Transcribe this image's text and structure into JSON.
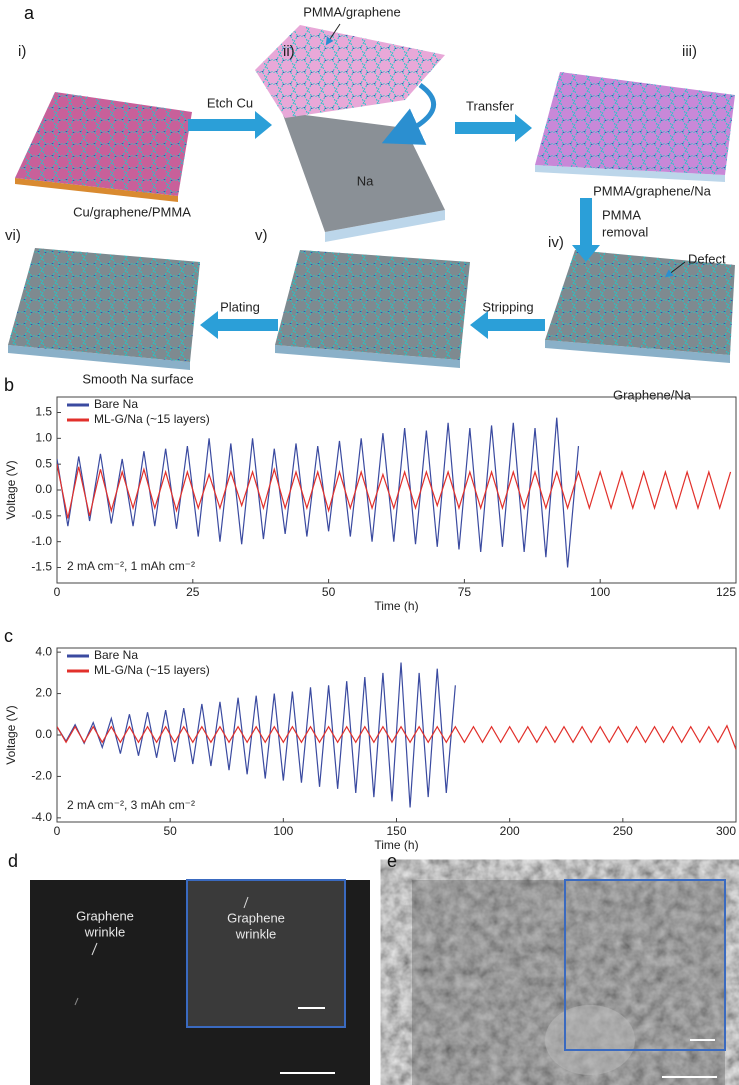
{
  "figure": {
    "panels": [
      "a",
      "b",
      "c",
      "d",
      "e"
    ],
    "steps": [
      "i)",
      "ii)",
      "iii)",
      "iv)",
      "v)",
      "vi)"
    ],
    "labels": {
      "peel": "PMMA/graphene",
      "na": "Na",
      "start": "Cu/graphene/PMMA",
      "etch": "Etch Cu",
      "transfer": "Transfer",
      "stack": "PMMA/graphene/Na",
      "removal": [
        "PMMA",
        "removal"
      ],
      "defect": "Defect",
      "result": "Graphene/Na",
      "stripping": "Stripping",
      "plating": "Plating",
      "smooth": "Smooth Na surface"
    }
  },
  "images": {
    "d": {
      "annotation": [
        "Graphene",
        "wrinkle"
      ],
      "inset_annotation": [
        "Graphene",
        "wrinkle"
      ]
    }
  },
  "chart_data": [
    {
      "type": "line",
      "ylabel": "Voltage (V)",
      "xlabel": "Time (h)",
      "annotation": "2 mA cm⁻², 1 mAh cm⁻²",
      "xlim": [
        0,
        125
      ],
      "xticks": [
        0,
        25,
        50,
        75,
        100,
        125
      ],
      "ylim": [
        -1.8,
        1.8
      ],
      "yticks": [
        {
          "value": -1.5,
          "label": "-1.5"
        },
        {
          "value": -1,
          "label": "-1.0"
        },
        -0.5,
        {
          "value": 0,
          "label": "0.0"
        },
        0.5,
        {
          "value": 1,
          "label": "1.0"
        },
        1.5
      ],
      "series": [
        {
          "name": "Bare Na",
          "color": "#3a4aa0",
          "x": [
            0,
            2,
            4,
            6,
            8,
            10,
            12,
            14,
            16,
            18,
            20,
            22,
            24,
            26,
            28,
            30,
            32,
            34,
            36,
            38,
            40,
            42,
            44,
            46,
            48,
            50,
            52,
            54,
            56,
            58,
            60,
            62,
            64,
            66,
            68,
            70,
            72,
            74,
            76,
            78,
            80,
            82,
            84,
            86,
            88,
            90,
            92,
            94,
            96
          ],
          "values": [
            0.6,
            -0.7,
            0.65,
            -0.6,
            0.7,
            -0.65,
            0.6,
            -0.7,
            0.75,
            -0.7,
            0.8,
            -0.75,
            0.85,
            -0.9,
            1.0,
            -1.0,
            0.9,
            -1.05,
            1.0,
            -0.95,
            0.8,
            -0.85,
            0.9,
            -0.9,
            0.85,
            -0.8,
            0.95,
            -0.9,
            1.0,
            -1.0,
            1.1,
            -1.0,
            1.2,
            -1.05,
            1.15,
            -1.1,
            1.3,
            -1.15,
            1.2,
            -1.2,
            1.25,
            -1.1,
            1.3,
            -1.2,
            1.2,
            -1.3,
            1.4,
            -1.5,
            0.85
          ]
        },
        {
          "name": "ML-G/Na (~15 layers)",
          "color": "#e2302b",
          "x": [
            0,
            2,
            4,
            6,
            8,
            10,
            12,
            14,
            16,
            18,
            20,
            22,
            24,
            26,
            28,
            30,
            32,
            34,
            36,
            38,
            40,
            42,
            44,
            46,
            48,
            50,
            52,
            54,
            56,
            58,
            60,
            62,
            64,
            66,
            68,
            70,
            72,
            74,
            76,
            78,
            80,
            82,
            84,
            86,
            88,
            90,
            92,
            94,
            96,
            98,
            100,
            102,
            104,
            106,
            108,
            110,
            112,
            114,
            116,
            118,
            120,
            122,
            124
          ],
          "values": [
            0.5,
            -0.55,
            0.45,
            -0.5,
            0.4,
            -0.4,
            0.35,
            -0.35,
            0.4,
            -0.35,
            0.35,
            -0.4,
            0.35,
            -0.35,
            0.3,
            -0.35,
            0.35,
            -0.3,
            0.35,
            -0.35,
            0.4,
            -0.35,
            0.35,
            -0.35,
            0.35,
            -0.4,
            0.35,
            -0.35,
            0.35,
            -0.35,
            0.3,
            -0.35,
            0.35,
            -0.35,
            0.35,
            -0.3,
            0.35,
            -0.35,
            0.35,
            -0.35,
            0.35,
            -0.35,
            0.35,
            -0.35,
            0.35,
            -0.35,
            0.35,
            -0.35,
            0.35,
            -0.35,
            0.35,
            -0.35,
            0.35,
            -0.35,
            0.35,
            -0.35,
            0.35,
            -0.35,
            0.35,
            -0.35,
            0.35,
            -0.35,
            0.35
          ]
        }
      ]
    },
    {
      "type": "line",
      "ylabel": "Voltage (V)",
      "xlabel": "Time (h)",
      "annotation": "2 mA cm⁻², 3 mAh cm⁻²",
      "xlim": [
        0,
        300
      ],
      "xticks": [
        0,
        50,
        100,
        150,
        200,
        250,
        300
      ],
      "ylim": [
        -4.2,
        4.2
      ],
      "yticks": [
        {
          "value": -4,
          "label": "-4.0"
        },
        {
          "value": -2,
          "label": "-2.0"
        },
        {
          "value": 0,
          "label": "0.0"
        },
        {
          "value": 2,
          "label": "2.0"
        },
        {
          "value": 4,
          "label": "4.0"
        }
      ],
      "series": [
        {
          "name": "Bare Na",
          "color": "#3a4aa0",
          "x": [
            0,
            4,
            8,
            12,
            16,
            20,
            24,
            28,
            32,
            36,
            40,
            44,
            48,
            52,
            56,
            60,
            64,
            68,
            72,
            76,
            80,
            84,
            88,
            92,
            96,
            100,
            104,
            108,
            112,
            116,
            120,
            124,
            128,
            132,
            136,
            140,
            144,
            148,
            152,
            156,
            160,
            164,
            168,
            172,
            176
          ],
          "values": [
            0.4,
            -0.3,
            0.5,
            -0.4,
            0.6,
            -0.6,
            0.8,
            -0.9,
            1.0,
            -1.0,
            1.1,
            -1.1,
            1.2,
            -1.3,
            1.3,
            -1.4,
            1.5,
            -1.5,
            1.6,
            -1.7,
            1.8,
            -1.9,
            1.9,
            -2.1,
            2.0,
            -2.2,
            2.1,
            -2.3,
            2.3,
            -2.5,
            2.4,
            -2.6,
            2.6,
            -2.8,
            2.8,
            -3.0,
            3.0,
            -3.2,
            3.5,
            -3.5,
            3.0,
            -3.0,
            3.2,
            -2.8,
            2.4
          ]
        },
        {
          "name": "ML-G/Na (~15 layers)",
          "color": "#e2302b",
          "x": [
            0,
            4,
            8,
            12,
            16,
            20,
            24,
            28,
            32,
            36,
            40,
            44,
            48,
            52,
            56,
            60,
            64,
            68,
            72,
            76,
            80,
            84,
            88,
            92,
            96,
            100,
            104,
            108,
            112,
            116,
            120,
            124,
            128,
            132,
            136,
            140,
            144,
            148,
            152,
            156,
            160,
            164,
            168,
            172,
            176,
            180,
            184,
            188,
            192,
            196,
            200,
            204,
            208,
            212,
            216,
            220,
            224,
            228,
            232,
            236,
            240,
            244,
            248,
            252,
            256,
            260,
            264,
            268,
            272,
            276,
            280,
            284,
            288,
            292,
            296,
            300
          ],
          "values": [
            0.4,
            -0.35,
            0.4,
            -0.35,
            0.4,
            -0.35,
            0.4,
            -0.35,
            0.4,
            -0.35,
            0.4,
            -0.35,
            0.4,
            -0.35,
            0.4,
            -0.35,
            0.4,
            -0.35,
            0.4,
            -0.35,
            0.4,
            -0.35,
            0.4,
            -0.35,
            0.4,
            -0.35,
            0.4,
            -0.35,
            0.4,
            -0.35,
            0.4,
            -0.35,
            0.4,
            -0.35,
            0.4,
            -0.35,
            0.4,
            -0.35,
            0.4,
            -0.35,
            0.4,
            -0.35,
            0.4,
            -0.35,
            0.4,
            -0.35,
            0.4,
            -0.35,
            0.4,
            -0.35,
            0.4,
            -0.35,
            0.4,
            -0.35,
            0.4,
            -0.35,
            0.4,
            -0.35,
            0.4,
            -0.35,
            0.4,
            -0.35,
            0.4,
            -0.35,
            0.4,
            -0.35,
            0.4,
            -0.35,
            0.4,
            -0.35,
            0.4,
            -0.35,
            0.4,
            -0.35,
            0.45,
            -0.7
          ]
        }
      ]
    }
  ]
}
